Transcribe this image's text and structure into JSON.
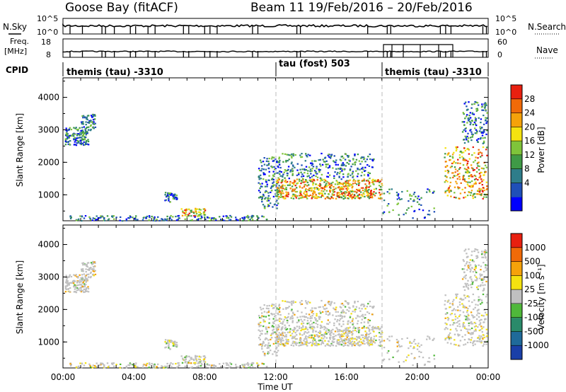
{
  "header": {
    "station": "Goose Bay (fitACF)",
    "beam_date": "Beam 11   19/Feb/2016 – 20/Feb/2016"
  },
  "top_panels": {
    "nsky_label": "N.Sky",
    "nsky_ticks": [
      "10^5",
      "10^0"
    ],
    "nsearch_label": "N.Search",
    "nsearch_ticks": [
      "10^5",
      "10^0"
    ],
    "freq_label_line1": "Freq.",
    "freq_label_line2": "[MHz]",
    "freq_ticks": [
      "18",
      "8"
    ],
    "nave_label": "Nave",
    "nave_ticks": [
      "60",
      "0"
    ],
    "cpid_label": "CPID"
  },
  "cpid_segments": [
    {
      "label": "themis (tau) -3310",
      "start_hour": 0
    },
    {
      "label": "tau (fost) 503",
      "start_hour": 12
    },
    {
      "label": "themis (tau) -3310",
      "start_hour": 18
    }
  ],
  "power_colorbar": {
    "label": "Power [dB]",
    "ticks": [
      "28",
      "24",
      "20",
      "16",
      "12",
      "8",
      "4"
    ],
    "colors": [
      "#0000ff",
      "#1f4fb8",
      "#2e7d8a",
      "#3f9a46",
      "#7fc43a",
      "#f4e210",
      "#f5a20a",
      "#f06a08",
      "#e82010"
    ]
  },
  "velocity_colorbar": {
    "label": "Velocity [m s⁻¹]",
    "ticks": [
      "1000",
      "500",
      "100",
      "25",
      "-25",
      "-100",
      "-500",
      "-1000"
    ],
    "colors": [
      "#1a3fa8",
      "#1f6a9a",
      "#2a8a6a",
      "#4fb83a",
      "#c0c0c0",
      "#f4e210",
      "#f5a20a",
      "#f06a08",
      "#e82010"
    ]
  },
  "chart_data": [
    {
      "type": "heatmap",
      "variable": "power",
      "ylabel": "Slant Range [km]",
      "ylim": [
        200,
        4600
      ],
      "yticks": [
        1000,
        2000,
        3000,
        4000
      ],
      "xlim_hours": [
        0,
        24
      ],
      "dashed_markers_hours": [
        12,
        18
      ]
    },
    {
      "type": "heatmap",
      "variable": "velocity",
      "ylabel": "Slant Range [km]",
      "ylim": [
        200,
        4600
      ],
      "yticks": [
        1000,
        2000,
        3000,
        4000
      ],
      "xlim_hours": [
        0,
        24
      ],
      "xlabel": "Time UT",
      "xtick_labels": [
        "00:00",
        "04:00",
        "08:00",
        "12:00",
        "16:00",
        "20:00",
        "00:00"
      ],
      "dashed_markers_hours": [
        12,
        18
      ]
    }
  ]
}
